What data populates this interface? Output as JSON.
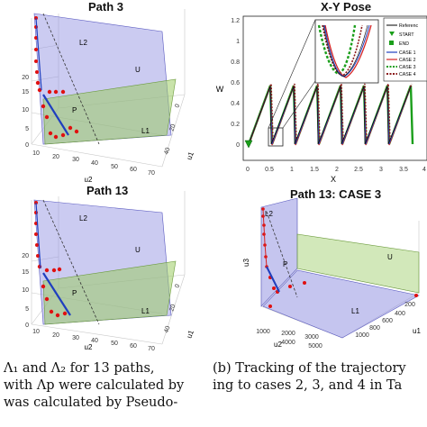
{
  "figure": {
    "panels": [
      {
        "title": "Path 3",
        "region_labels": [
          "L2",
          "U",
          "P",
          "L1"
        ],
        "axis_labels": {
          "u1": "u1",
          "u2": "u2"
        },
        "z_ticks": [
          "0",
          "5",
          "10",
          "15",
          "20"
        ],
        "u2_ticks": [
          "10",
          "20",
          "30",
          "40",
          "50",
          "60",
          "70"
        ],
        "u1_ticks": [
          "0",
          "20",
          "40"
        ]
      },
      {
        "title": "X-Y Pose",
        "xlabel": "X",
        "ylabel": "W",
        "x_ticks": [
          "0",
          "0.5",
          "1",
          "1.5",
          "2",
          "2.5",
          "3",
          "3.5",
          "4"
        ],
        "y_ticks": [
          "0",
          "0.2",
          "0.4",
          "0.6",
          "0.8",
          "1",
          "1.2"
        ],
        "legend": [
          {
            "label": "Referenc",
            "color": "#000000",
            "style": "line"
          },
          {
            "label": "START",
            "color": "#1a9e1a",
            "style": "triangle"
          },
          {
            "label": "END",
            "color": "#1a9e1a",
            "style": "square"
          },
          {
            "label": "CASE 1",
            "color": "#1f3fbf",
            "style": "line"
          },
          {
            "label": "CASE 2",
            "color": "#d62020",
            "style": "line"
          },
          {
            "label": "CASE 3",
            "color": "#1a9e1a",
            "style": "dotted"
          },
          {
            "label": "CASE 4",
            "color": "#8b1a1a",
            "style": "dotted"
          }
        ]
      },
      {
        "title": "Path 13",
        "region_labels": [
          "L2",
          "U",
          "P",
          "L1"
        ],
        "axis_labels": {
          "u1": "u1",
          "u2": "u2"
        },
        "z_ticks": [
          "0",
          "5",
          "10",
          "15",
          "20"
        ],
        "u2_ticks": [
          "10",
          "20",
          "30",
          "40",
          "50",
          "60",
          "70"
        ],
        "u1_ticks": [
          "0",
          "20",
          "40"
        ]
      },
      {
        "title": "Path 13: CASE 3",
        "region_labels": [
          "L2",
          "U",
          "P",
          "L1"
        ],
        "axis_labels": {
          "u1": "u1",
          "u2": "u2",
          "u3": "u3"
        },
        "u2_ticks": [
          "1000",
          "2000",
          "3000",
          "4000",
          "5000"
        ],
        "u1_ticks": [
          "200",
          "400",
          "600",
          "800",
          "1000"
        ]
      }
    ],
    "captions": {
      "left": [
        "Λ₁ and Λ₂ for 13 paths,",
        "with Λp were calculated by",
        "was calculated by Pseudo-"
      ],
      "right": [
        "(b) Tracking of the trajectory",
        "ing to cases 2, 3, and 4 in Ta"
      ]
    }
  },
  "colors": {
    "plane_green": "#9ccc65",
    "plane_purple": "#8c8ce0",
    "point_red": "#e01010",
    "line_blue": "#1f3fbf",
    "line_red": "#d62020",
    "line_green": "#1a9e1a",
    "line_black": "#000000"
  }
}
